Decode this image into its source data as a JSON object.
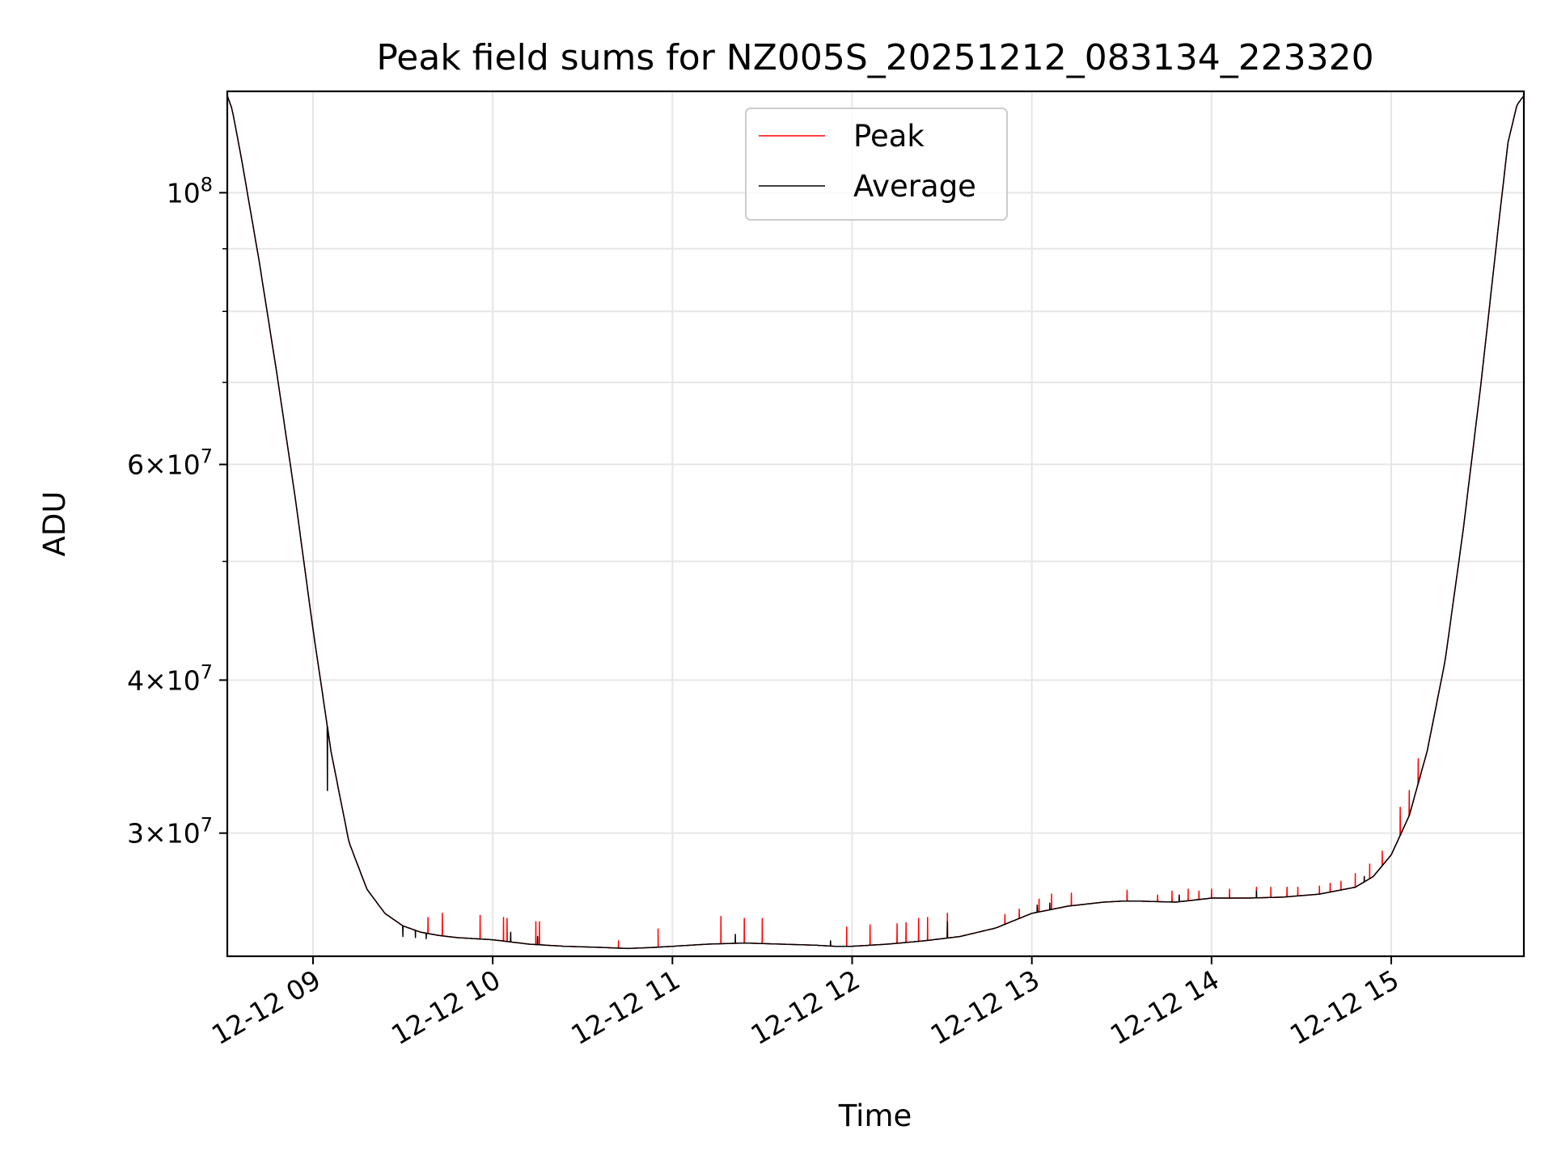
{
  "chart_data": {
    "type": "line",
    "title": "Peak field sums for NZ005S_20251212_083134_223320",
    "xlabel": "Time",
    "ylabel": "ADU",
    "yscale": "log",
    "ylim": [
      23800000,
      121000000
    ],
    "xlim_hours": [
      8.523,
      15.738
    ],
    "x_units": "hours since 2025-12-12 00:00",
    "grid": true,
    "legend_position": "top-center",
    "x_ticks": [
      {
        "value": 9,
        "label": "12-12 09"
      },
      {
        "value": 10,
        "label": "12-12 10"
      },
      {
        "value": 11,
        "label": "12-12 11"
      },
      {
        "value": 12,
        "label": "12-12 12"
      },
      {
        "value": 13,
        "label": "12-12 13"
      },
      {
        "value": 14,
        "label": "12-12 14"
      },
      {
        "value": 15,
        "label": "12-12 15"
      }
    ],
    "y_major_ticks": [
      {
        "value": 30000000,
        "mantissa": "3",
        "exponent": "7"
      },
      {
        "value": 40000000,
        "mantissa": "4",
        "exponent": "7"
      },
      {
        "value": 60000000,
        "mantissa": "6",
        "exponent": "7"
      },
      {
        "value": 100000000,
        "mantissa": "",
        "exponent": "8"
      }
    ],
    "y_minor_ticks": [
      50000000,
      70000000,
      80000000,
      90000000
    ],
    "series": [
      {
        "name": "Peak",
        "color": "#ff0000"
      },
      {
        "name": "Average",
        "color": "#000000"
      }
    ],
    "average_curve": {
      "x": [
        8.523,
        8.55,
        8.6,
        8.7,
        8.8,
        8.9,
        9.0,
        9.1,
        9.2,
        9.3,
        9.4,
        9.5,
        9.6,
        9.7,
        9.8,
        9.9,
        10.0,
        10.2,
        10.4,
        10.6,
        10.75,
        10.9,
        11.0,
        11.2,
        11.4,
        11.6,
        11.8,
        11.9,
        12.0,
        12.2,
        12.4,
        12.6,
        12.8,
        12.9,
        13.0,
        13.2,
        13.4,
        13.5,
        13.6,
        13.8,
        14.0,
        14.2,
        14.4,
        14.6,
        14.8,
        14.9,
        15.0,
        15.1,
        15.2,
        15.3,
        15.4,
        15.5,
        15.6,
        15.65,
        15.7,
        15.738
      ],
      "y": [
        120000000,
        117000000,
        107000000,
        88000000,
        71000000,
        56500000,
        44000000,
        35000000,
        29500000,
        27000000,
        25800000,
        25200000,
        24900000,
        24750000,
        24650000,
        24600000,
        24550000,
        24350000,
        24250000,
        24200000,
        24150000,
        24200000,
        24250000,
        24350000,
        24400000,
        24350000,
        24300000,
        24250000,
        24250000,
        24350000,
        24500000,
        24700000,
        25100000,
        25450000,
        25800000,
        26150000,
        26350000,
        26400000,
        26400000,
        26350000,
        26550000,
        26550000,
        26600000,
        26750000,
        27100000,
        27650000,
        28800000,
        31000000,
        35000000,
        41500000,
        53000000,
        70000000,
        95000000,
        110000000,
        118000000,
        120000000
      ]
    },
    "peak_spikes": [
      [
        9.64,
        25600000
      ],
      [
        9.72,
        25800000
      ],
      [
        9.93,
        25700000
      ],
      [
        10.06,
        25600000
      ],
      [
        10.08,
        25550000
      ],
      [
        10.24,
        25400000
      ],
      [
        10.26,
        25400000
      ],
      [
        10.7,
        24500000
      ],
      [
        10.92,
        25050000
      ],
      [
        11.27,
        25650000
      ],
      [
        11.4,
        25550000
      ],
      [
        11.5,
        25550000
      ],
      [
        11.97,
        25150000
      ],
      [
        12.1,
        25250000
      ],
      [
        12.25,
        25300000
      ],
      [
        12.3,
        25350000
      ],
      [
        12.37,
        25550000
      ],
      [
        12.42,
        25600000
      ],
      [
        12.53,
        25800000
      ],
      [
        12.85,
        25750000
      ],
      [
        12.93,
        26000000
      ],
      [
        13.04,
        26500000
      ],
      [
        13.11,
        26750000
      ],
      [
        13.22,
        26800000
      ],
      [
        13.53,
        26950000
      ],
      [
        13.7,
        26700000
      ],
      [
        13.78,
        26900000
      ],
      [
        13.87,
        27000000
      ],
      [
        13.93,
        26900000
      ],
      [
        14.0,
        27000000
      ],
      [
        14.1,
        27000000
      ],
      [
        14.25,
        27100000
      ],
      [
        14.33,
        27100000
      ],
      [
        14.42,
        27100000
      ],
      [
        14.48,
        27100000
      ],
      [
        14.6,
        27150000
      ],
      [
        14.66,
        27300000
      ],
      [
        14.72,
        27400000
      ],
      [
        14.8,
        27800000
      ],
      [
        14.88,
        28300000
      ],
      [
        14.95,
        29000000
      ],
      [
        15.05,
        31500000
      ],
      [
        15.1,
        32500000
      ],
      [
        15.15,
        34500000
      ]
    ],
    "average_spikes": [
      [
        9.08,
        32500000
      ],
      [
        9.5,
        24700000
      ],
      [
        9.57,
        24650000
      ],
      [
        9.63,
        24600000
      ],
      [
        10.1,
        24900000
      ],
      [
        10.25,
        24700000
      ],
      [
        11.35,
        24800000
      ],
      [
        11.88,
        24500000
      ],
      [
        12.53,
        25400000
      ],
      [
        13.03,
        26200000
      ],
      [
        13.1,
        26300000
      ],
      [
        13.82,
        26700000
      ],
      [
        14.25,
        26900000
      ],
      [
        14.85,
        27650000
      ]
    ]
  }
}
